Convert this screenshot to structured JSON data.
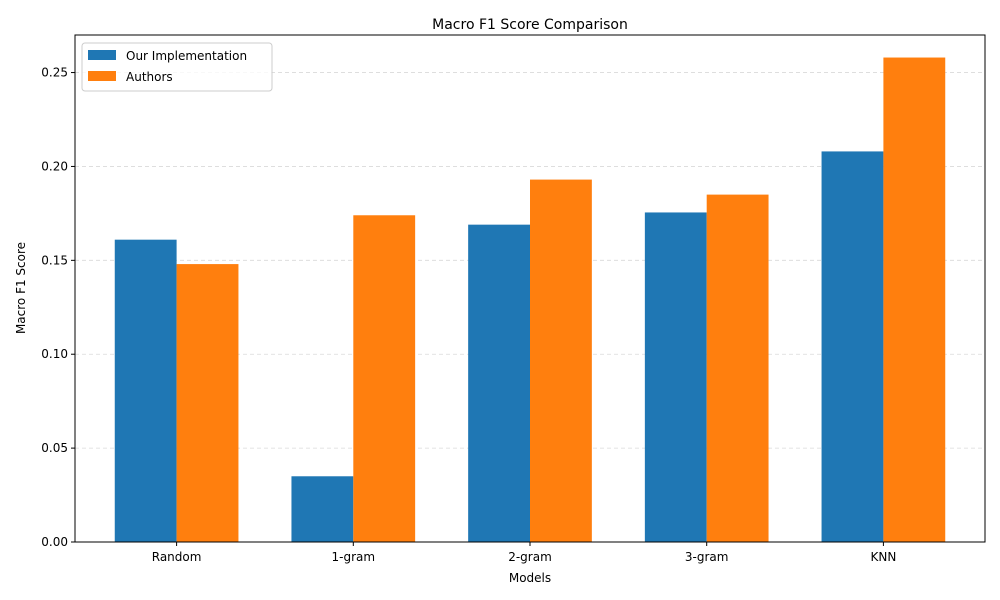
{
  "chart_data": {
    "type": "bar",
    "title": "Macro F1 Score Comparison",
    "xlabel": "Models",
    "ylabel": "Macro F1 Score",
    "categories": [
      "Random",
      "1-gram",
      "2-gram",
      "3-gram",
      "KNN"
    ],
    "series": [
      {
        "name": "Our Implementation",
        "color": "#1f77b4",
        "values": [
          0.161,
          0.035,
          0.169,
          0.1755,
          0.208
        ]
      },
      {
        "name": "Authors",
        "color": "#ff7f0e",
        "values": [
          0.148,
          0.174,
          0.193,
          0.185,
          0.258
        ]
      }
    ],
    "ylim": [
      0,
      0.27
    ],
    "yticks": [
      0.0,
      0.05,
      0.1,
      0.15,
      0.2,
      0.25
    ],
    "ytick_labels": [
      "0.00",
      "0.05",
      "0.10",
      "0.15",
      "0.20",
      "0.25"
    ],
    "grid": "y-dashed",
    "legend_position": "top-left"
  }
}
